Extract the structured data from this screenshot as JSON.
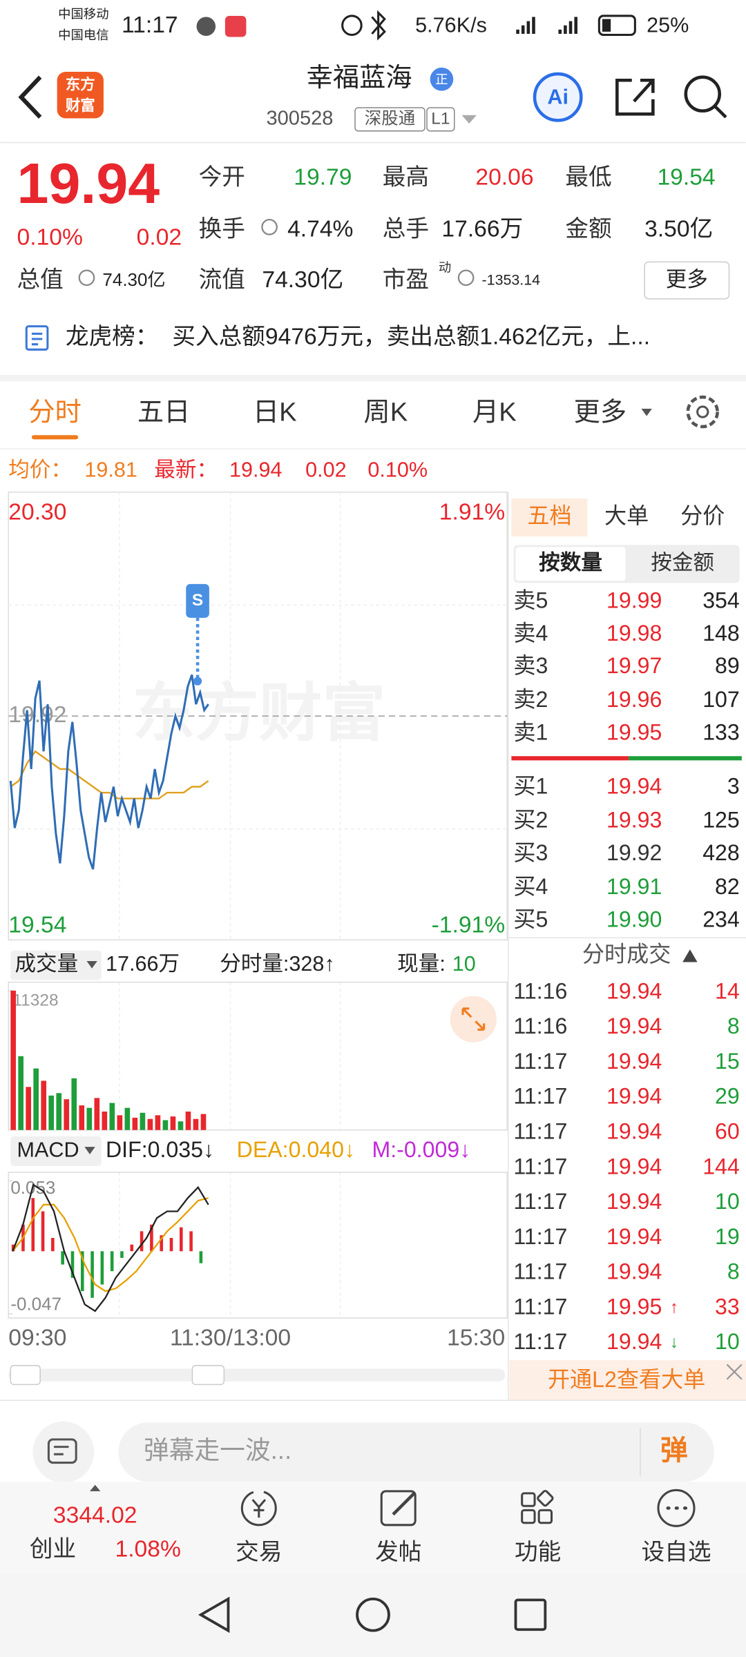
{
  "status_bar": {
    "carrier_1": "中国移动",
    "carrier_2": "中国电信",
    "time": "11:17",
    "net_speed": "5.76K/s",
    "battery": "25%"
  },
  "header": {
    "logo_line_1": "东方",
    "logo_line_2": "财富",
    "title": "幸福蓝海",
    "badge": "正",
    "code": "300528",
    "tag_1": "深股通",
    "tag_2": "L1",
    "ai_icon": "Ai"
  },
  "quote": {
    "price": "19.94",
    "change_pct": "0.10%",
    "change": "0.02",
    "fields": [
      {
        "label": "今开",
        "value": "19.79"
      },
      {
        "label": "最高",
        "value": "20.06"
      },
      {
        "label": "最低",
        "value": "19.54"
      },
      {
        "label": "换手",
        "value": "4.74%"
      },
      {
        "label": "总手",
        "value": "17.66万"
      },
      {
        "label": "金额",
        "value": "3.50亿"
      },
      {
        "label": "总值",
        "value": "74.30亿"
      },
      {
        "label": "流值",
        "value": "74.30亿"
      },
      {
        "label": "市盈",
        "sup": "动",
        "value": "-1353.14"
      }
    ],
    "more_button": "更多"
  },
  "dragon_tiger": {
    "label": "龙虎榜：",
    "text": "买入总额9476万元，卖出总额1.462亿元，上..."
  },
  "tabs": [
    "分时",
    "五日",
    "日K",
    "周K",
    "月K",
    "更多"
  ],
  "summary": {
    "avg_label": "均价：",
    "avg": "19.81",
    "last_label": "最新：",
    "last": "19.94",
    "change": "0.02",
    "change_pct": "0.10%"
  },
  "intraday_chart": {
    "watermark": "东方财富",
    "signal": "S",
    "ylim": [
      19.54,
      20.3
    ],
    "yticks": [
      {
        "value": 20.3,
        "label": "20.30"
      },
      {
        "value": 19.92,
        "label": "19.92"
      },
      {
        "value": 19.54,
        "label": "19.54"
      }
    ],
    "y2lim": [
      -1.91,
      1.91
    ],
    "y2ticks": [
      {
        "value": 1.91,
        "label": "1.91%"
      },
      {
        "value": -1.91,
        "label": "-1.91%"
      }
    ],
    "price_color": "#2f6db5",
    "avg_color": "#e0a020",
    "price": [
      19.81,
      19.73,
      19.76,
      19.85,
      19.93,
      19.83,
      19.95,
      19.98,
      19.86,
      19.94,
      19.8,
      19.72,
      19.67,
      19.75,
      19.86,
      19.91,
      19.84,
      19.76,
      19.72,
      19.68,
      19.66,
      19.73,
      19.79,
      19.74,
      19.77,
      19.8,
      19.75,
      19.78,
      19.76,
      19.74,
      19.78,
      19.73,
      19.76,
      19.8,
      19.78,
      19.83,
      19.79,
      19.81,
      19.85,
      19.89,
      19.92,
      19.9,
      19.93,
      19.97,
      19.99,
      19.94,
      19.96,
      19.93,
      19.94
    ],
    "avg": [
      19.8,
      19.81,
      19.84,
      19.86,
      19.85,
      19.84,
      19.83,
      19.83,
      19.82,
      19.81,
      19.8,
      19.79,
      19.79,
      19.78,
      19.78,
      19.78,
      19.78,
      19.78,
      19.78,
      19.79,
      19.79,
      19.79,
      19.8,
      19.8,
      19.81
    ],
    "x_labels": [
      "09:30",
      "11:30/13:00",
      "15:30"
    ]
  },
  "volume_panel": {
    "label": "成交量",
    "total": "17.66万",
    "minute_volume": "分时量:328↑",
    "current_label": "现量:",
    "current": "10",
    "ylim": [
      0,
      11328
    ],
    "yticks": [
      11328
    ],
    "values": [
      11328,
      6000,
      3500,
      5000,
      4000,
      2800,
      3000,
      2500,
      4200,
      2000,
      1800,
      2600,
      1500,
      2200,
      1200,
      1800,
      1000,
      1400,
      900,
      1200,
      800,
      1100,
      700,
      1500,
      900,
      1300
    ],
    "colors": [
      "#e8262d",
      "#1e9e3a",
      "#e8262d",
      "#1e9e3a",
      "#e8262d",
      "#1e9e3a",
      "#1e9e3a",
      "#e8262d",
      "#1e9e3a",
      "#e8262d",
      "#1e9e3a",
      "#e8262d",
      "#e8262d",
      "#1e9e3a",
      "#e8262d",
      "#1e9e3a",
      "#e8262d",
      "#1e9e3a",
      "#e8262d",
      "#e8262d",
      "#1e9e3a",
      "#e8262d",
      "#1e9e3a",
      "#e8262d",
      "#e8262d",
      "#e8262d"
    ]
  },
  "macd_panel": {
    "label": "MACD",
    "dif": "DIF:0.035↓",
    "dea": "DEA:0.040↓",
    "m": "M:-0.009↓",
    "ylim": [
      -0.047,
      0.053
    ],
    "yticks": [
      0.053,
      -0.047
    ],
    "dif_color": "#222222",
    "dea_color": "#e8a000",
    "up_color": "#e8262d",
    "down_color": "#1e9e3a",
    "histogram": [
      0.005,
      0.02,
      0.04,
      0.03,
      0.01,
      -0.01,
      -0.02,
      -0.03,
      -0.035,
      -0.025,
      -0.015,
      -0.005,
      0.005,
      0.015,
      0.02,
      0.012,
      0.01,
      0.018,
      0.015,
      -0.009
    ],
    "dif_values": [
      0.0,
      0.02,
      0.05,
      0.045,
      0.03,
      0.0,
      -0.02,
      -0.04,
      -0.045,
      -0.035,
      -0.02,
      -0.01,
      0.0,
      0.01,
      0.025,
      0.03,
      0.03,
      0.04,
      0.048,
      0.035
    ],
    "dea_values": [
      0.0,
      0.01,
      0.025,
      0.035,
      0.035,
      0.025,
      0.01,
      -0.01,
      -0.025,
      -0.03,
      -0.028,
      -0.022,
      -0.015,
      -0.005,
      0.005,
      0.015,
      0.022,
      0.03,
      0.038,
      0.04
    ]
  },
  "order_book": {
    "tabs": [
      "五档",
      "大单",
      "分价"
    ],
    "sub_tabs": [
      "按数量",
      "按金额"
    ],
    "asks": [
      {
        "label": "卖5",
        "price": "19.99",
        "volume": "354",
        "color": "#e8262d"
      },
      {
        "label": "卖4",
        "price": "19.98",
        "volume": "148",
        "color": "#e8262d"
      },
      {
        "label": "卖3",
        "price": "19.97",
        "volume": "89",
        "color": "#e8262d"
      },
      {
        "label": "卖2",
        "price": "19.96",
        "volume": "107",
        "color": "#e8262d"
      },
      {
        "label": "卖1",
        "price": "19.95",
        "volume": "133",
        "color": "#e8262d"
      }
    ],
    "bids": [
      {
        "label": "买1",
        "price": "19.94",
        "volume": "3",
        "color": "#e8262d"
      },
      {
        "label": "买2",
        "price": "19.93",
        "volume": "125",
        "color": "#e8262d"
      },
      {
        "label": "买3",
        "price": "19.92",
        "volume": "428",
        "color": "#333333"
      },
      {
        "label": "买4",
        "price": "19.91",
        "volume": "82",
        "color": "#1e9e3a"
      },
      {
        "label": "买5",
        "price": "19.90",
        "volume": "234",
        "color": "#1e9e3a"
      }
    ]
  },
  "trades": {
    "title": "分时成交",
    "rows": [
      {
        "time": "11:16",
        "price": "19.94",
        "volume": "14",
        "color": "#e8262d"
      },
      {
        "time": "11:16",
        "price": "19.94",
        "volume": "8",
        "color": "#1e9e3a"
      },
      {
        "time": "11:17",
        "price": "19.94",
        "volume": "15",
        "color": "#1e9e3a"
      },
      {
        "time": "11:17",
        "price": "19.94",
        "volume": "29",
        "color": "#1e9e3a"
      },
      {
        "time": "11:17",
        "price": "19.94",
        "volume": "60",
        "color": "#e8262d"
      },
      {
        "time": "11:17",
        "price": "19.94",
        "volume": "144",
        "color": "#e8262d"
      },
      {
        "time": "11:17",
        "price": "19.94",
        "volume": "10",
        "color": "#1e9e3a"
      },
      {
        "time": "11:17",
        "price": "19.94",
        "volume": "19",
        "color": "#1e9e3a"
      },
      {
        "time": "11:17",
        "price": "19.94",
        "volume": "8",
        "color": "#1e9e3a"
      },
      {
        "time": "11:17",
        "price": "19.95",
        "arrow": "↑",
        "arrow_color": "#e8262d",
        "volume": "33",
        "color": "#e8262d"
      },
      {
        "time": "11:17",
        "price": "19.94",
        "arrow": "↓",
        "arrow_color": "#1e9e3a",
        "volume": "10",
        "color": "#1e9e3a"
      }
    ],
    "l2_banner": "开通L2查看大单"
  },
  "comment_bar": {
    "placeholder": "弹幕走一波...",
    "button": "弹"
  },
  "bottom_nav": {
    "index_value": "3344.02",
    "index_name": "创业",
    "index_change": "1.08%",
    "items": [
      "交易",
      "发帖",
      "功能",
      "设自选"
    ]
  }
}
